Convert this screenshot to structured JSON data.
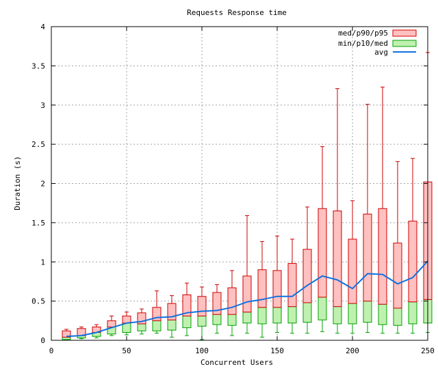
{
  "chart_data": {
    "type": "boxplot",
    "title": "Requests Response time",
    "xlabel": "Concurrent Users",
    "ylabel": "Duration (s)",
    "xlim": [
      0,
      250
    ],
    "ylim": [
      0,
      4
    ],
    "x_ticks": [
      "0",
      "50",
      "100",
      "150",
      "200",
      "250"
    ],
    "y_ticks": [
      "0",
      "0.5",
      "1",
      "1.5",
      "2",
      "2.5",
      "3",
      "3.5",
      "4"
    ],
    "grid": true,
    "legend_position": "top-right",
    "legend": {
      "upper": "med/p90/p95",
      "lower": "min/p10/med",
      "avg": "avg"
    },
    "colors": {
      "upper_fill": "#ffc0c0",
      "upper_stroke": "#cc0000",
      "lower_fill": "#c0f0b0",
      "lower_stroke": "#00a000",
      "avg_line": "#1070e0",
      "grid": "#a0a0a0"
    },
    "series": [
      {
        "users": 10,
        "min": 0.01,
        "p10": 0.01,
        "med": 0.04,
        "p90": 0.12,
        "p95": 0.14,
        "avg": 0.05
      },
      {
        "users": 20,
        "min": 0.02,
        "p10": 0.03,
        "med": 0.06,
        "p90": 0.15,
        "p95": 0.17,
        "avg": 0.06
      },
      {
        "users": 30,
        "min": 0.03,
        "p10": 0.05,
        "med": 0.1,
        "p90": 0.17,
        "p95": 0.2,
        "avg": 0.1
      },
      {
        "users": 40,
        "min": 0.06,
        "p10": 0.08,
        "med": 0.17,
        "p90": 0.25,
        "p95": 0.31,
        "avg": 0.16
      },
      {
        "users": 50,
        "min": 0.07,
        "p10": 0.1,
        "med": 0.22,
        "p90": 0.31,
        "p95": 0.36,
        "avg": 0.22
      },
      {
        "users": 60,
        "min": 0.08,
        "p10": 0.12,
        "med": 0.21,
        "p90": 0.35,
        "p95": 0.4,
        "avg": 0.24
      },
      {
        "users": 70,
        "min": 0.09,
        "p10": 0.12,
        "med": 0.25,
        "p90": 0.42,
        "p95": 0.63,
        "avg": 0.29
      },
      {
        "users": 80,
        "min": 0.04,
        "p10": 0.13,
        "med": 0.26,
        "p90": 0.47,
        "p95": 0.57,
        "avg": 0.3
      },
      {
        "users": 90,
        "min": 0.06,
        "p10": 0.16,
        "med": 0.31,
        "p90": 0.58,
        "p95": 0.73,
        "avg": 0.35
      },
      {
        "users": 100,
        "min": 0.01,
        "p10": 0.18,
        "med": 0.31,
        "p90": 0.56,
        "p95": 0.68,
        "avg": 0.37
      },
      {
        "users": 110,
        "min": 0.09,
        "p10": 0.2,
        "med": 0.33,
        "p90": 0.61,
        "p95": 0.71,
        "avg": 0.38
      },
      {
        "users": 120,
        "min": 0.06,
        "p10": 0.19,
        "med": 0.33,
        "p90": 0.67,
        "p95": 0.89,
        "avg": 0.42
      },
      {
        "users": 130,
        "min": 0.09,
        "p10": 0.22,
        "med": 0.36,
        "p90": 0.82,
        "p95": 1.59,
        "avg": 0.49
      },
      {
        "users": 140,
        "min": 0.04,
        "p10": 0.21,
        "med": 0.42,
        "p90": 0.9,
        "p95": 1.26,
        "avg": 0.52
      },
      {
        "users": 150,
        "min": 0.1,
        "p10": 0.22,
        "med": 0.42,
        "p90": 0.89,
        "p95": 1.33,
        "avg": 0.56
      },
      {
        "users": 160,
        "min": 0.09,
        "p10": 0.22,
        "med": 0.43,
        "p90": 0.98,
        "p95": 1.29,
        "avg": 0.56
      },
      {
        "users": 170,
        "min": 0.09,
        "p10": 0.23,
        "med": 0.48,
        "p90": 1.16,
        "p95": 1.7,
        "avg": 0.7
      },
      {
        "users": 180,
        "min": 0.11,
        "p10": 0.26,
        "med": 0.55,
        "p90": 1.68,
        "p95": 2.47,
        "avg": 0.82
      },
      {
        "users": 190,
        "min": 0.09,
        "p10": 0.21,
        "med": 0.43,
        "p90": 1.65,
        "p95": 3.21,
        "avg": 0.77
      },
      {
        "users": 200,
        "min": 0.09,
        "p10": 0.21,
        "med": 0.47,
        "p90": 1.29,
        "p95": 1.78,
        "avg": 0.66
      },
      {
        "users": 210,
        "min": 0.1,
        "p10": 0.23,
        "med": 0.5,
        "p90": 1.61,
        "p95": 3.01,
        "avg": 0.85
      },
      {
        "users": 220,
        "min": 0.09,
        "p10": 0.2,
        "med": 0.46,
        "p90": 1.68,
        "p95": 3.23,
        "avg": 0.84
      },
      {
        "users": 230,
        "min": 0.09,
        "p10": 0.19,
        "med": 0.41,
        "p90": 1.24,
        "p95": 2.28,
        "avg": 0.72
      },
      {
        "users": 240,
        "min": 0.09,
        "p10": 0.21,
        "med": 0.49,
        "p90": 1.52,
        "p95": 2.32,
        "avg": 0.8
      },
      {
        "users": 250,
        "min": 0.1,
        "p10": 0.22,
        "med": 0.52,
        "p90": 2.02,
        "p95": 3.67,
        "avg": 1.01
      }
    ]
  }
}
